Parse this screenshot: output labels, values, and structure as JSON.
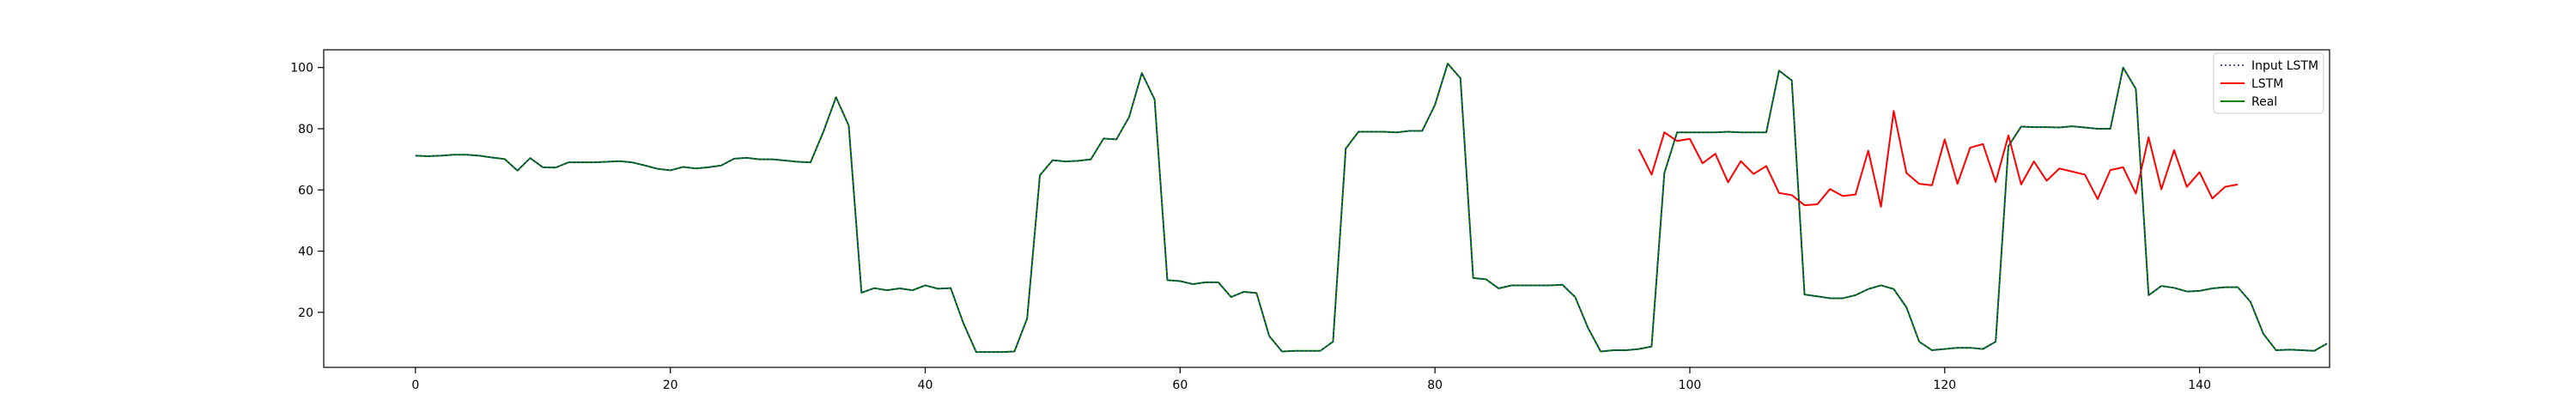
{
  "chart_data": {
    "type": "line",
    "title": "",
    "xlabel": "",
    "ylabel": "",
    "xlim": [
      -7.2,
      150.2
    ],
    "ylim": [
      2.0,
      105.8
    ],
    "xticks": [
      0,
      20,
      40,
      60,
      80,
      100,
      120,
      140
    ],
    "yticks": [
      20,
      40,
      60,
      80,
      100
    ],
    "grid": false,
    "legend_position": "top-right",
    "series": [
      {
        "name": "Input LSTM",
        "color": "#1f1f8f",
        "style": "dotted",
        "x_start": 0,
        "values": [
          71.2,
          71.0,
          71.2,
          71.5,
          71.5,
          71.2,
          70.6,
          70.1,
          66.3,
          70.4,
          67.4,
          67.3,
          69.0,
          69.0,
          69.0,
          69.2,
          69.4,
          69.0,
          68.0,
          66.9,
          66.4,
          67.5,
          67.0,
          67.4,
          68.0,
          70.2,
          70.5,
          70.0,
          70.0,
          69.6,
          69.2,
          69.0,
          78.9,
          90.3,
          81.0,
          26.4,
          27.9,
          27.2,
          27.8,
          27.2,
          28.8,
          27.7,
          27.9,
          16.4,
          7.0,
          7.0,
          7.0,
          7.2,
          18.0,
          64.8,
          69.7,
          69.3,
          69.5,
          70.0,
          76.8,
          76.5,
          83.8,
          98.2,
          89.6,
          30.5,
          30.2,
          29.2,
          29.8,
          29.8,
          25.0,
          26.7,
          26.3,
          12.2,
          7.2,
          7.4,
          7.4,
          7.4,
          10.4,
          73.5,
          79.0,
          79.0,
          79.0,
          78.8,
          79.3,
          79.3,
          87.8,
          101.3,
          96.5,
          31.2,
          30.8,
          27.8,
          28.8,
          28.8,
          28.8,
          28.8,
          29.0,
          25.0,
          15.0,
          7.2,
          7.6,
          7.6,
          8.0,
          8.8,
          65.5,
          78.8,
          78.8,
          78.8,
          78.8,
          79.0,
          78.8,
          78.8,
          78.8,
          99.0,
          95.8,
          25.8,
          25.2,
          24.6,
          24.6,
          25.6,
          27.6,
          28.8,
          27.6,
          21.6,
          10.4,
          7.6,
          8.0,
          8.4,
          8.4,
          8.0,
          10.4,
          74.3,
          80.7,
          80.5,
          80.5,
          80.4,
          80.8,
          80.4,
          80.0,
          80.0,
          100.0,
          93.0,
          25.6,
          28.6,
          28.0,
          26.8,
          27.0,
          27.8,
          28.2,
          28.2,
          23.4,
          13.0,
          7.6,
          7.8,
          7.6,
          7.4,
          9.8
        ]
      },
      {
        "name": "LSTM",
        "color": "#ff0000",
        "style": "solid",
        "x_start": 96,
        "values": [
          73.3,
          65.0,
          78.8,
          76.0,
          76.7,
          68.7,
          71.8,
          62.5,
          69.4,
          65.2,
          67.8,
          59.0,
          58.3,
          55.0,
          55.3,
          60.3,
          58.0,
          58.5,
          72.8,
          54.5,
          85.8,
          65.5,
          62.0,
          61.5,
          76.5,
          62.0,
          73.8,
          75.0,
          62.6,
          77.8,
          61.8,
          69.3,
          63.0,
          67.0,
          66.0,
          65.0,
          57.0,
          66.5,
          67.4,
          58.8,
          77.2,
          60.2,
          73.0,
          61.0,
          65.8,
          57.2,
          61.0,
          61.8
        ]
      },
      {
        "name": "Real",
        "color": "#008000",
        "style": "solid",
        "x_start": 0,
        "values": [
          71.2,
          71.0,
          71.2,
          71.5,
          71.5,
          71.2,
          70.6,
          70.1,
          66.3,
          70.4,
          67.4,
          67.3,
          69.0,
          69.0,
          69.0,
          69.2,
          69.4,
          69.0,
          68.0,
          66.9,
          66.4,
          67.5,
          67.0,
          67.4,
          68.0,
          70.2,
          70.5,
          70.0,
          70.0,
          69.6,
          69.2,
          69.0,
          78.9,
          90.3,
          81.0,
          26.4,
          27.9,
          27.2,
          27.8,
          27.2,
          28.8,
          27.7,
          27.9,
          16.4,
          7.0,
          7.0,
          7.0,
          7.2,
          18.0,
          64.8,
          69.7,
          69.3,
          69.5,
          70.0,
          76.8,
          76.5,
          83.8,
          98.2,
          89.6,
          30.5,
          30.2,
          29.2,
          29.8,
          29.8,
          25.0,
          26.7,
          26.3,
          12.2,
          7.2,
          7.4,
          7.4,
          7.4,
          10.4,
          73.5,
          79.0,
          79.0,
          79.0,
          78.8,
          79.3,
          79.3,
          87.8,
          101.3,
          96.5,
          31.2,
          30.8,
          27.8,
          28.8,
          28.8,
          28.8,
          28.8,
          29.0,
          25.0,
          15.0,
          7.2,
          7.6,
          7.6,
          8.0,
          8.8,
          65.5,
          78.8,
          78.8,
          78.8,
          78.8,
          79.0,
          78.8,
          78.8,
          78.8,
          99.0,
          95.8,
          25.8,
          25.2,
          24.6,
          24.6,
          25.6,
          27.6,
          28.8,
          27.6,
          21.6,
          10.4,
          7.6,
          8.0,
          8.4,
          8.4,
          8.0,
          10.4,
          74.3,
          80.7,
          80.5,
          80.5,
          80.4,
          80.8,
          80.4,
          80.0,
          80.0,
          100.0,
          93.0,
          25.6,
          28.6,
          28.0,
          26.8,
          27.0,
          27.8,
          28.2,
          28.2,
          23.4,
          13.0,
          7.6,
          7.8,
          7.6,
          7.4,
          9.8
        ]
      }
    ]
  }
}
